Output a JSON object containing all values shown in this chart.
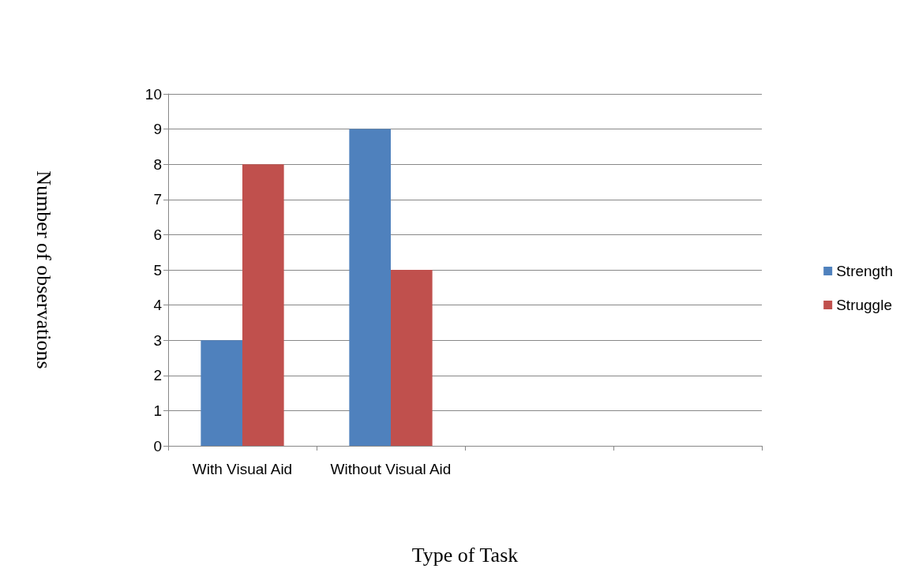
{
  "chart_data": {
    "type": "bar",
    "xlabel": "Type of Task",
    "ylabel": "Number of observations",
    "categories": [
      "With Visual Aid",
      "Without Visual Aid",
      null,
      null
    ],
    "series": [
      {
        "name": "Strength",
        "color": "#4f81bd",
        "values": [
          3,
          9,
          null,
          null
        ]
      },
      {
        "name": "Struggle",
        "color": "#c0504d",
        "values": [
          8,
          5,
          null,
          null
        ]
      }
    ],
    "ylim": [
      0,
      10
    ],
    "yticks": [
      0,
      1,
      2,
      3,
      4,
      5,
      6,
      7,
      8,
      9,
      10
    ],
    "grid": "y",
    "legend": "right"
  }
}
